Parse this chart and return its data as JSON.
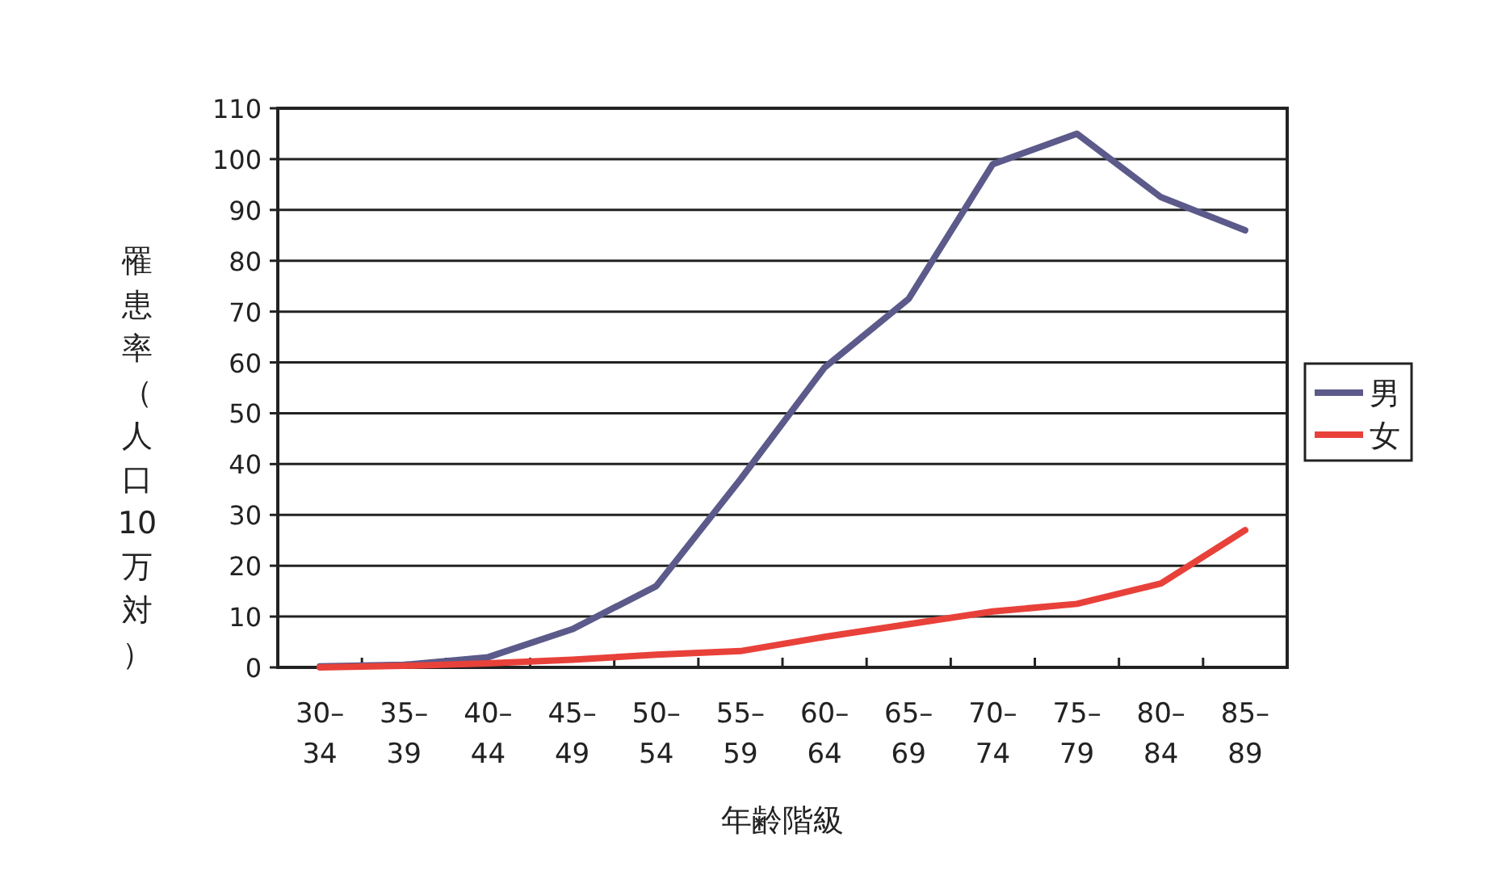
{
  "chart_data": {
    "type": "line",
    "xlabel": "年齢階級",
    "ylabel": "罹患率（人口10万対）",
    "categories": [
      "30–34",
      "35–39",
      "40–44",
      "45–49",
      "50–54",
      "55–59",
      "60–64",
      "65–69",
      "70–74",
      "75–79",
      "80–84",
      "85–89"
    ],
    "series": [
      {
        "name": "男",
        "color": "#5b5a8a",
        "values": [
          0.2,
          0.5,
          2,
          7.5,
          16,
          37,
          59,
          72.5,
          99,
          105,
          92.5,
          86
        ]
      },
      {
        "name": "女",
        "color": "#e8413a",
        "values": [
          0,
          0.3,
          0.8,
          1.5,
          2.5,
          3.2,
          6,
          8.5,
          11,
          12.5,
          16.5,
          27
        ]
      }
    ],
    "ylim": [
      0,
      110
    ],
    "yticks": [
      0,
      10,
      20,
      30,
      40,
      50,
      60,
      70,
      80,
      90,
      100,
      110
    ],
    "grid": "y",
    "legend": "right",
    "marker": "none",
    "line_style": "solid"
  }
}
